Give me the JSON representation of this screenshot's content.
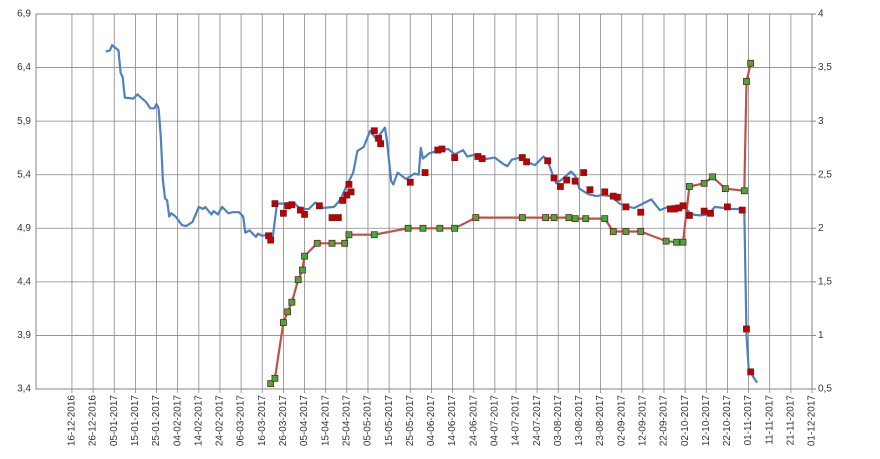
{
  "chart_data": {
    "type": "line",
    "grid": true,
    "xlim": [
      "2016-11-29",
      "2017-12-01"
    ],
    "xticks": [
      {
        "value": "2016-12-16",
        "label": "16-12-2016"
      },
      {
        "value": "2016-12-26",
        "label": "26-12-2016"
      },
      {
        "value": "2017-01-05",
        "label": "05-01-2017"
      },
      {
        "value": "2017-01-15",
        "label": "15-01-2017"
      },
      {
        "value": "2017-01-25",
        "label": "25-01-2017"
      },
      {
        "value": "2017-02-04",
        "label": "04-02-2017"
      },
      {
        "value": "2017-02-14",
        "label": "14-02-2017"
      },
      {
        "value": "2017-02-24",
        "label": "24-02-2017"
      },
      {
        "value": "2017-03-06",
        "label": "06-03-2017"
      },
      {
        "value": "2017-03-16",
        "label": "16-03-2017"
      },
      {
        "value": "2017-03-26",
        "label": "26-03-2017"
      },
      {
        "value": "2017-04-05",
        "label": "05-04-2017"
      },
      {
        "value": "2017-04-15",
        "label": "15-04-2017"
      },
      {
        "value": "2017-04-25",
        "label": "25-04-2017"
      },
      {
        "value": "2017-05-05",
        "label": "05-05-2017"
      },
      {
        "value": "2017-05-15",
        "label": "15-05-2017"
      },
      {
        "value": "2017-05-25",
        "label": "25-05-2017"
      },
      {
        "value": "2017-06-04",
        "label": "04-06-2017"
      },
      {
        "value": "2017-06-14",
        "label": "14-06-2017"
      },
      {
        "value": "2017-06-24",
        "label": "24-06-2017"
      },
      {
        "value": "2017-07-04",
        "label": "04-07-2017"
      },
      {
        "value": "2017-07-14",
        "label": "14-07-2017"
      },
      {
        "value": "2017-07-24",
        "label": "24-07-2017"
      },
      {
        "value": "2017-08-03",
        "label": "03-08-2017"
      },
      {
        "value": "2017-08-13",
        "label": "13-08-2017"
      },
      {
        "value": "2017-08-23",
        "label": "23-08-2017"
      },
      {
        "value": "2017-09-02",
        "label": "02-09-2017"
      },
      {
        "value": "2017-09-12",
        "label": "12-09-2017"
      },
      {
        "value": "2017-09-22",
        "label": "22-09-2017"
      },
      {
        "value": "2017-10-02",
        "label": "02-10-2017"
      },
      {
        "value": "2017-10-12",
        "label": "12-10-2017"
      },
      {
        "value": "2017-10-22",
        "label": "22-10-2017"
      },
      {
        "value": "2017-11-01",
        "label": "01-11-2017"
      },
      {
        "value": "2017-11-11",
        "label": "11-11-2017"
      },
      {
        "value": "2017-11-21",
        "label": "21-11-2017"
      },
      {
        "value": "2017-12-01",
        "label": "01-12-2017"
      }
    ],
    "ylim": [
      3.4,
      6.9
    ],
    "yticks": [
      {
        "value": 3.4,
        "label": "3,4"
      },
      {
        "value": 3.9,
        "label": "3,9"
      },
      {
        "value": 4.4,
        "label": "4,4"
      },
      {
        "value": 4.9,
        "label": "4,9"
      },
      {
        "value": 5.4,
        "label": "5,4"
      },
      {
        "value": 5.9,
        "label": "5,9"
      },
      {
        "value": 6.4,
        "label": "6,4"
      },
      {
        "value": 6.9,
        "label": "6,9"
      }
    ],
    "y2lim": [
      0.5,
      4
    ],
    "y2ticks": [
      {
        "value": 0.5,
        "label": "0,5"
      },
      1,
      {
        "value": 1.5,
        "label": "1,5"
      },
      2,
      {
        "value": 2.5,
        "label": "2,5"
      },
      3,
      {
        "value": 3.5,
        "label": "3,5"
      },
      4
    ],
    "series": [
      {
        "color": "#4f81bd",
        "axis": "y",
        "show_line": true,
        "x": [
          "2017-01-01",
          "2017-01-03",
          "2017-01-04",
          "2017-01-07",
          "2017-01-08",
          "2017-01-09",
          "2017-01-10",
          "2017-01-14",
          "2017-01-16",
          "2017-01-20",
          "2017-01-22",
          "2017-01-24",
          "2017-01-25",
          "2017-01-26",
          "2017-01-27",
          "2017-01-28",
          "2017-01-29",
          "2017-01-30",
          "2017-01-31",
          "2017-02-01",
          "2017-02-03",
          "2017-02-06",
          "2017-02-08",
          "2017-02-11",
          "2017-02-14",
          "2017-02-16",
          "2017-02-17",
          "2017-02-20",
          "2017-02-21",
          "2017-02-23",
          "2017-02-25",
          "2017-02-28",
          "2017-03-02",
          "2017-03-05",
          "2017-03-07",
          "2017-03-08",
          "2017-03-10",
          "2017-03-13",
          "2017-03-14",
          "2017-03-16",
          "2017-03-19",
          "2017-03-21",
          "2017-03-23",
          "2017-03-26",
          "2017-03-31",
          "2017-04-03",
          "2017-04-07",
          "2017-04-10",
          "2017-04-14",
          "2017-04-19",
          "2017-04-22",
          "2017-04-25",
          "2017-04-28",
          "2017-04-30",
          "2017-05-03",
          "2017-05-06",
          "2017-05-09",
          "2017-05-13",
          "2017-05-14",
          "2017-05-16",
          "2017-05-17",
          "2017-05-19",
          "2017-05-23",
          "2017-05-27",
          "2017-05-29",
          "2017-05-30",
          "2017-05-31",
          "2017-06-03",
          "2017-06-08",
          "2017-06-12",
          "2017-06-15",
          "2017-06-19",
          "2017-06-21",
          "2017-06-25",
          "2017-06-27",
          "2017-07-01",
          "2017-07-04",
          "2017-07-08",
          "2017-07-10",
          "2017-07-12",
          "2017-07-16",
          "2017-07-19",
          "2017-07-23",
          "2017-07-27",
          "2017-07-29",
          "2017-07-31",
          "2017-08-02",
          "2017-08-05",
          "2017-08-09",
          "2017-08-11",
          "2017-08-13",
          "2017-08-17",
          "2017-08-21",
          "2017-08-24",
          "2017-08-28",
          "2017-09-01",
          "2017-09-05",
          "2017-09-08",
          "2017-09-12",
          "2017-09-16",
          "2017-09-20",
          "2017-09-24",
          "2017-09-27",
          "2017-10-01",
          "2017-10-05",
          "2017-10-09",
          "2017-10-13",
          "2017-10-16",
          "2017-10-20",
          "2017-10-24",
          "2017-10-28",
          "2017-10-30",
          "2017-10-31",
          "2017-11-01",
          "2017-11-03",
          "2017-11-05"
        ],
        "values": [
          6.55,
          6.56,
          6.61,
          6.56,
          6.35,
          6.31,
          6.12,
          6.11,
          6.15,
          6.08,
          6.02,
          6.02,
          6.06,
          6.02,
          5.75,
          5.35,
          5.18,
          5.16,
          5.01,
          5.04,
          5.01,
          4.93,
          4.92,
          4.96,
          5.1,
          5.08,
          5.1,
          5.03,
          5.06,
          5.03,
          5.1,
          5.04,
          5.05,
          5.05,
          5.01,
          4.86,
          4.88,
          4.82,
          4.85,
          4.83,
          4.84,
          4.82,
          5.13,
          5.13,
          5.14,
          5.08,
          5.08,
          5.14,
          5.09,
          5.1,
          5.17,
          5.3,
          5.42,
          5.62,
          5.66,
          5.81,
          5.73,
          5.84,
          5.71,
          5.34,
          5.31,
          5.42,
          5.36,
          5.41,
          5.4,
          5.65,
          5.55,
          5.6,
          5.63,
          5.64,
          5.59,
          5.63,
          5.57,
          5.59,
          5.54,
          5.55,
          5.56,
          5.5,
          5.48,
          5.54,
          5.56,
          5.52,
          5.49,
          5.57,
          5.53,
          5.42,
          5.32,
          5.36,
          5.43,
          5.39,
          5.27,
          5.22,
          5.2,
          5.21,
          5.2,
          5.13,
          5.1,
          5.09,
          5.13,
          5.17,
          5.07,
          5.1,
          5.11,
          5.11,
          5.03,
          5.02,
          5.03,
          5.1,
          5.09,
          5.08,
          5.08,
          5.07,
          3.9,
          3.6,
          3.52,
          3.46
        ]
      },
      {
        "color": "#c0504d",
        "axis": "y2",
        "show_line": true,
        "marker": "square",
        "marker_color": "#3cae3c",
        "x": [
          "2017-03-20",
          "2017-03-22",
          "2017-03-26",
          "2017-03-28",
          "2017-03-30",
          "2017-04-02",
          "2017-04-04",
          "2017-04-05",
          "2017-04-11",
          "2017-04-18",
          "2017-04-24",
          "2017-04-26",
          "2017-05-08",
          "2017-05-24",
          "2017-05-31",
          "2017-06-08",
          "2017-06-15",
          "2017-06-25",
          "2017-07-17",
          "2017-07-28",
          "2017-08-01",
          "2017-08-08",
          "2017-08-11",
          "2017-08-16",
          "2017-08-25",
          "2017-08-29",
          "2017-09-04",
          "2017-09-11",
          "2017-09-23",
          "2017-09-28",
          "2017-10-01",
          "2017-10-04",
          "2017-10-11",
          "2017-10-15",
          "2017-10-21",
          "2017-10-30",
          "2017-10-31",
          "2017-11-02"
        ],
        "values": [
          0.55,
          0.6,
          1.12,
          1.22,
          1.31,
          1.52,
          1.61,
          1.74,
          1.86,
          1.86,
          1.86,
          1.94,
          1.94,
          2.0,
          2.0,
          2.0,
          2.0,
          2.1,
          2.1,
          2.1,
          2.1,
          2.1,
          2.09,
          2.09,
          2.09,
          1.97,
          1.97,
          1.97,
          1.88,
          1.87,
          1.87,
          2.39,
          2.42,
          2.48,
          2.37,
          2.35,
          3.37,
          3.54
        ]
      },
      {
        "color": "#c00000",
        "axis": "y",
        "show_line": false,
        "marker": "square",
        "marker_color": "#c00000",
        "x": [
          "2017-03-19",
          "2017-03-20",
          "2017-03-22",
          "2017-03-26",
          "2017-03-28",
          "2017-03-30",
          "2017-04-03",
          "2017-04-05",
          "2017-04-12",
          "2017-04-18",
          "2017-04-21",
          "2017-04-23",
          "2017-04-25",
          "2017-04-26",
          "2017-04-27",
          "2017-05-08",
          "2017-05-10",
          "2017-05-11",
          "2017-05-25",
          "2017-06-01",
          "2017-06-07",
          "2017-06-09",
          "2017-06-15",
          "2017-06-26",
          "2017-06-28",
          "2017-07-17",
          "2017-07-19",
          "2017-07-29",
          "2017-08-01",
          "2017-08-04",
          "2017-08-07",
          "2017-08-11",
          "2017-08-15",
          "2017-08-18",
          "2017-08-25",
          "2017-08-29",
          "2017-08-31",
          "2017-09-04",
          "2017-09-11",
          "2017-09-25",
          "2017-09-27",
          "2017-09-29",
          "2017-10-01",
          "2017-10-04",
          "2017-10-11",
          "2017-10-14",
          "2017-10-22",
          "2017-10-29",
          "2017-10-31",
          "2017-11-02"
        ],
        "values": [
          4.83,
          4.79,
          5.13,
          5.04,
          5.11,
          5.12,
          5.07,
          5.03,
          5.11,
          5.0,
          5.0,
          5.16,
          5.21,
          5.31,
          5.24,
          5.81,
          5.74,
          5.69,
          5.33,
          5.42,
          5.63,
          5.64,
          5.56,
          5.57,
          5.55,
          5.56,
          5.52,
          5.53,
          5.37,
          5.29,
          5.35,
          5.34,
          5.42,
          5.26,
          5.24,
          5.2,
          5.19,
          5.1,
          5.05,
          5.08,
          5.08,
          5.09,
          5.11,
          5.02,
          5.06,
          5.04,
          5.1,
          5.07,
          3.96,
          3.56
        ]
      }
    ]
  }
}
